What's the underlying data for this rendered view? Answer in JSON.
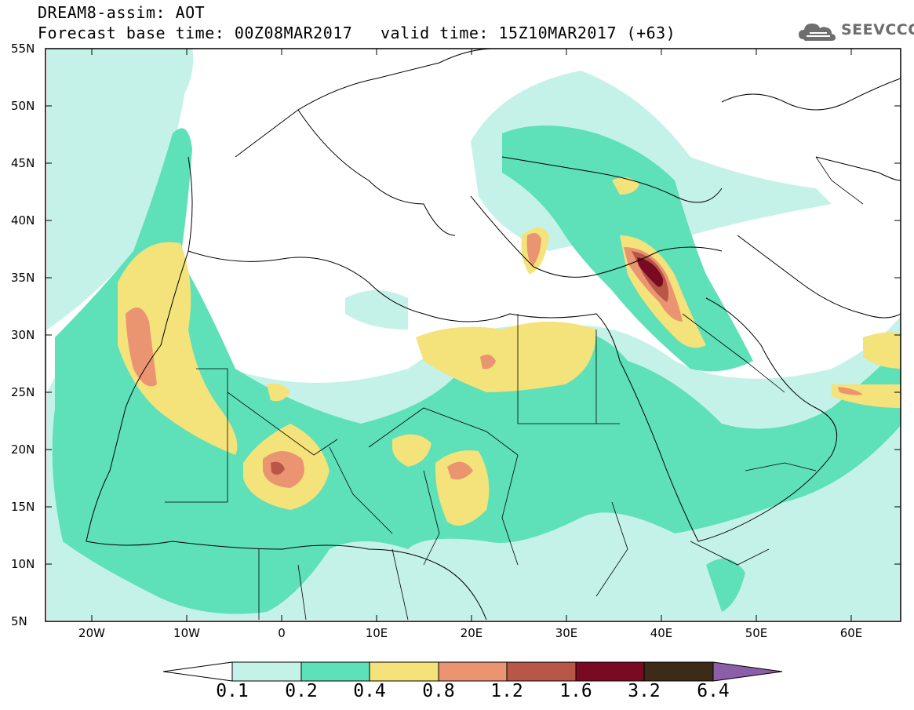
{
  "header": {
    "title": "DREAM8-assim: AOT",
    "base_time": "Forecast base time: 00Z08MAR2017",
    "valid_time": "valid time: 15Z10MAR2017 (+63)"
  },
  "logo": {
    "text": "SEEVCCC",
    "icon": "cloud-icon"
  },
  "map": {
    "lat_labels": [
      "55N",
      "50N",
      "45N",
      "40N",
      "35N",
      "30N",
      "25N",
      "20N",
      "15N",
      "10N",
      "5N"
    ],
    "lon_labels": [
      "20W",
      "10W",
      "0",
      "10E",
      "20E",
      "30E",
      "40E",
      "50E",
      "60E"
    ],
    "colors": {
      "c1": "#c4f2e8",
      "c2": "#5ee0b8",
      "c3": "#f4e27a",
      "c4": "#ea9472",
      "c5": "#b85648",
      "c6": "#7a0a22",
      "c7": "#3e2a18",
      "c8": "#8a5ea8"
    }
  },
  "colorbar": {
    "labels": [
      "0.1",
      "0.2",
      "0.4",
      "0.8",
      "1.2",
      "1.6",
      "3.2",
      "6.4"
    ]
  }
}
